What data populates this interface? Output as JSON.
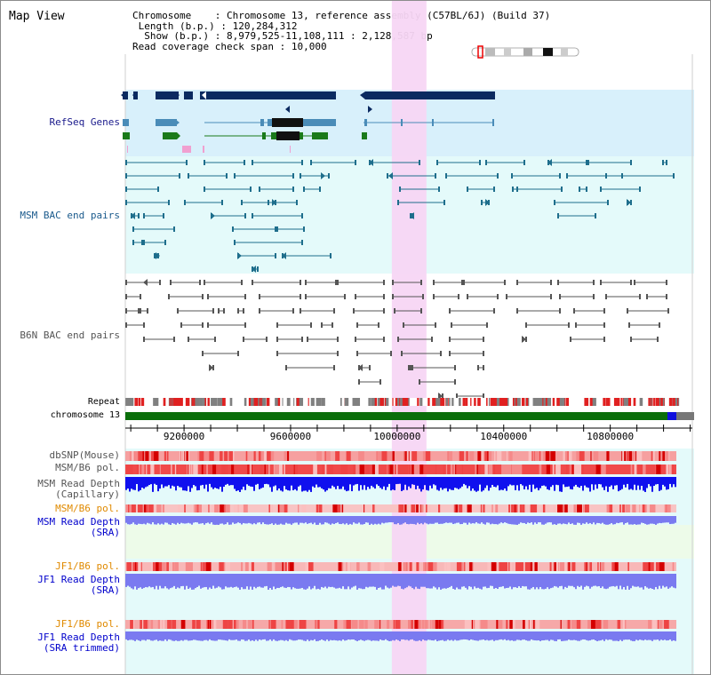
{
  "window": {
    "title": "Map View"
  },
  "info": {
    "chromosome_key": "Chromosome",
    "chromosome_value": "Chromosome 13, reference assembly (C57BL/6J) (Build 37)",
    "length_key": "Length (b.p.)",
    "length_value": "120,284,312",
    "show_key": "Show (b.p.)",
    "show_value": "8,979,525-11,108,111 : 2,128,587 bp",
    "coverage_key": "Read coverage check span",
    "coverage_value": "10,000"
  },
  "view": {
    "start": 8979525,
    "end": 11108111,
    "highlight_start": 9980000,
    "highlight_end": 10110000
  },
  "axis": {
    "ticks": [
      9200000,
      9600000,
      10000000,
      10400000,
      10800000
    ],
    "tick_labels": [
      "9200000",
      "9600000",
      "10000000",
      "10400000",
      "10800000"
    ]
  },
  "tracks": {
    "refseq": "RefSeq Genes",
    "msm_bac": "MSM BAC end pairs",
    "b6n_bac": "B6N BAC end pairs",
    "repeat": "Repeat",
    "chromosome": "chromosome 13",
    "dbsnp": "dbSNP(Mouse)",
    "msm_pol_1": "MSM/B6 pol.",
    "msm_depth_cap_1": "MSM Read Depth",
    "msm_depth_cap_2": "(Capillary)",
    "msm_pol_2": "MSM/B6 pol.",
    "msm_depth_sra_1": "MSM Read Depth",
    "msm_depth_sra_2": "(SRA)",
    "jf1_pol_1": "JF1/B6 pol.",
    "jf1_depth_sra_1": "JF1 Read Depth",
    "jf1_depth_sra_2": "(SRA)",
    "jf1_pol_2": "JF1/B6 pol.",
    "jf1_depth_trim_1": "JF1 Read Depth",
    "jf1_depth_trim_2": "(SRA trimmed)"
  },
  "colors": {
    "refseq_label": "#1a1a8c",
    "msm_label": "#1a5a8c",
    "b6n_label": "#555555",
    "pol_label": "#e08a00",
    "sra_label": "#0000cc",
    "refseq_bg": "#d8f0fb",
    "msm_bg": "#e4fafa",
    "highlight": "#f7d6f4",
    "gene_dark": "#0b2a60",
    "gene_mid": "#4a8cb8",
    "gene_green": "#1a7a1a",
    "bac_teal": "#1e6e8c",
    "bac_gray": "#555555",
    "chromosome_bar": "#0a6e0a",
    "depth_capillary": "#1010ee",
    "depth_sra": "#7a7af0"
  }
}
